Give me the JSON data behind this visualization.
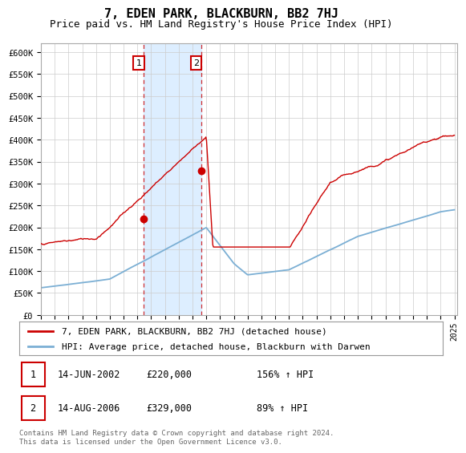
{
  "title": "7, EDEN PARK, BLACKBURN, BB2 7HJ",
  "subtitle": "Price paid vs. HM Land Registry's House Price Index (HPI)",
  "title_fontsize": 11,
  "subtitle_fontsize": 9,
  "ylabel_ticks": [
    "£0",
    "£50K",
    "£100K",
    "£150K",
    "£200K",
    "£250K",
    "£300K",
    "£350K",
    "£400K",
    "£450K",
    "£500K",
    "£550K",
    "£600K"
  ],
  "ylim": [
    0,
    620000
  ],
  "xlim_start": 1995.0,
  "xlim_end": 2025.2,
  "hpi_color": "#7bafd4",
  "price_color": "#cc0000",
  "sale1_year": 2002.45,
  "sale1_price": 220000,
  "sale2_year": 2006.62,
  "sale2_price": 329000,
  "legend_line1": "7, EDEN PARK, BLACKBURN, BB2 7HJ (detached house)",
  "legend_line2": "HPI: Average price, detached house, Blackburn with Darwen",
  "table_row1": [
    "1",
    "14-JUN-2002",
    "£220,000",
    "156% ↑ HPI"
  ],
  "table_row2": [
    "2",
    "14-AUG-2006",
    "£329,000",
    "89% ↑ HPI"
  ],
  "footnote": "Contains HM Land Registry data © Crown copyright and database right 2024.\nThis data is licensed under the Open Government Licence v3.0.",
  "background_color": "#ffffff",
  "grid_color": "#cccccc",
  "span_color": "#ddeeff",
  "box_edge_color": "#cc0000"
}
